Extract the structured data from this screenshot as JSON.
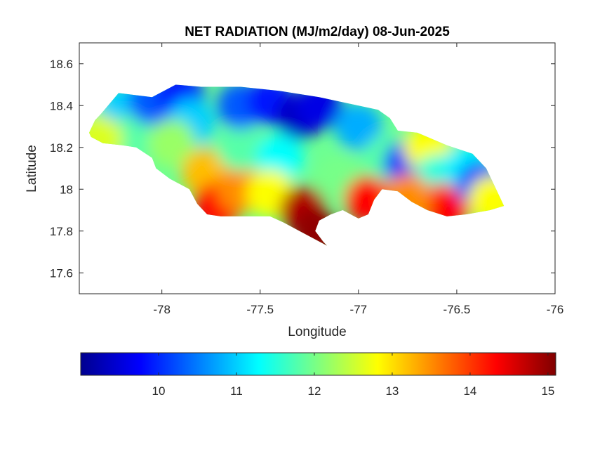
{
  "chart_data": {
    "type": "heatmap",
    "title": "NET RADIATION (MJ/m2/day) 08-Jun-2025",
    "xlabel": "Longitude",
    "ylabel": "Latitude",
    "xlim": [
      -78.42,
      -76.0
    ],
    "ylim": [
      17.5,
      18.7
    ],
    "xticks": [
      -78,
      -77.5,
      -77,
      -76.5,
      -76
    ],
    "xtick_labels": [
      "-78",
      "-77.5",
      "-77",
      "-76.5",
      "-76"
    ],
    "yticks": [
      17.6,
      17.8,
      18,
      18.2,
      18.4,
      18.6
    ],
    "ytick_labels": [
      "17.6",
      "17.8",
      "18",
      "18.2",
      "18.4",
      "18.6"
    ],
    "colormap": "jet",
    "clim": [
      9.0,
      15.1
    ],
    "colorbar": {
      "location": "bottom",
      "ticks": [
        10,
        11,
        12,
        13,
        14,
        15
      ],
      "tick_labels": [
        "10",
        "11",
        "12",
        "13",
        "14",
        "15"
      ]
    },
    "grid": false,
    "region_outline": [
      [
        -78.37,
        18.27
      ],
      [
        -78.34,
        18.33
      ],
      [
        -78.31,
        18.36
      ],
      [
        -78.22,
        18.46
      ],
      [
        -78.05,
        18.44
      ],
      [
        -77.93,
        18.5
      ],
      [
        -77.8,
        18.49
      ],
      [
        -77.6,
        18.49
      ],
      [
        -77.4,
        18.47
      ],
      [
        -77.2,
        18.44
      ],
      [
        -77.0,
        18.4
      ],
      [
        -76.9,
        18.38
      ],
      [
        -76.84,
        18.34
      ],
      [
        -76.8,
        18.28
      ],
      [
        -76.7,
        18.27
      ],
      [
        -76.55,
        18.21
      ],
      [
        -76.42,
        18.17
      ],
      [
        -76.35,
        18.1
      ],
      [
        -76.3,
        18.0
      ],
      [
        -76.26,
        17.92
      ],
      [
        -76.33,
        17.9
      ],
      [
        -76.45,
        17.88
      ],
      [
        -76.55,
        17.87
      ],
      [
        -76.65,
        17.9
      ],
      [
        -76.73,
        17.94
      ],
      [
        -76.8,
        17.99
      ],
      [
        -76.88,
        18.0
      ],
      [
        -76.92,
        17.95
      ],
      [
        -76.95,
        17.88
      ],
      [
        -77.0,
        17.86
      ],
      [
        -77.08,
        17.9
      ],
      [
        -77.14,
        17.88
      ],
      [
        -77.2,
        17.85
      ],
      [
        -77.22,
        17.8
      ],
      [
        -77.18,
        17.75
      ],
      [
        -77.16,
        17.73
      ],
      [
        -77.22,
        17.76
      ],
      [
        -77.3,
        17.8
      ],
      [
        -77.38,
        17.84
      ],
      [
        -77.45,
        17.87
      ],
      [
        -77.55,
        17.87
      ],
      [
        -77.7,
        17.87
      ],
      [
        -77.77,
        17.88
      ],
      [
        -77.82,
        17.93
      ],
      [
        -77.86,
        18.0
      ],
      [
        -77.96,
        18.05
      ],
      [
        -78.03,
        18.1
      ],
      [
        -78.05,
        18.15
      ],
      [
        -78.13,
        18.2
      ],
      [
        -78.2,
        18.21
      ],
      [
        -78.3,
        18.22
      ],
      [
        -78.36,
        18.25
      ]
    ],
    "value_field": [
      {
        "lon": -78.3,
        "lat": 18.3,
        "value": 12.0
      },
      {
        "lon": -78.2,
        "lat": 18.38,
        "value": 11.0
      },
      {
        "lon": -78.12,
        "lat": 18.26,
        "value": 11.8
      },
      {
        "lon": -78.05,
        "lat": 18.42,
        "value": 10.3
      },
      {
        "lon": -77.9,
        "lat": 18.44,
        "value": 9.8
      },
      {
        "lon": -77.85,
        "lat": 18.32,
        "value": 11.0
      },
      {
        "lon": -77.95,
        "lat": 18.22,
        "value": 12.2
      },
      {
        "lon": -77.78,
        "lat": 18.08,
        "value": 13.2
      },
      {
        "lon": -77.72,
        "lat": 17.92,
        "value": 14.3
      },
      {
        "lon": -77.6,
        "lat": 18.0,
        "value": 13.5
      },
      {
        "lon": -77.6,
        "lat": 18.2,
        "value": 11.8
      },
      {
        "lon": -77.6,
        "lat": 18.4,
        "value": 10.3
      },
      {
        "lon": -77.45,
        "lat": 18.42,
        "value": 9.9
      },
      {
        "lon": -77.3,
        "lat": 18.35,
        "value": 9.4
      },
      {
        "lon": -77.2,
        "lat": 18.4,
        "value": 9.6
      },
      {
        "lon": -77.4,
        "lat": 18.15,
        "value": 11.3
      },
      {
        "lon": -77.45,
        "lat": 17.98,
        "value": 12.8
      },
      {
        "lon": -77.28,
        "lat": 17.9,
        "value": 14.8
      },
      {
        "lon": -77.22,
        "lat": 17.8,
        "value": 15.0
      },
      {
        "lon": -77.1,
        "lat": 18.05,
        "value": 12.0
      },
      {
        "lon": -77.0,
        "lat": 18.3,
        "value": 10.8
      },
      {
        "lon": -76.95,
        "lat": 17.95,
        "value": 14.3
      },
      {
        "lon": -76.85,
        "lat": 18.15,
        "value": 11.8
      },
      {
        "lon": -76.75,
        "lat": 18.12,
        "value": 10.0
      },
      {
        "lon": -76.65,
        "lat": 18.2,
        "value": 12.8
      },
      {
        "lon": -76.6,
        "lat": 18.05,
        "value": 11.5
      },
      {
        "lon": -76.55,
        "lat": 17.92,
        "value": 14.3
      },
      {
        "lon": -76.45,
        "lat": 18.1,
        "value": 11.2
      },
      {
        "lon": -76.38,
        "lat": 18.02,
        "value": 10.2
      },
      {
        "lon": -76.32,
        "lat": 17.95,
        "value": 12.8
      },
      {
        "lon": -76.75,
        "lat": 17.96,
        "value": 13.5
      },
      {
        "lon": -78.32,
        "lat": 18.24,
        "value": 12.6
      }
    ]
  }
}
